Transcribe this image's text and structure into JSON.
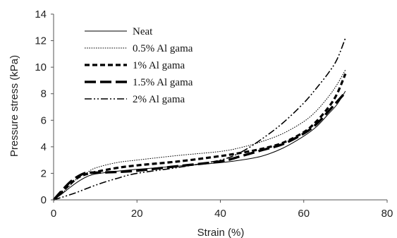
{
  "chart_data": {
    "type": "line",
    "xlabel": "Strain (%)",
    "ylabel": "Pressure stress (kPa)",
    "xlim": [
      0,
      80
    ],
    "ylim": [
      0,
      14
    ],
    "x_ticks": [
      "0",
      "20",
      "40",
      "60",
      "80"
    ],
    "y_ticks": [
      "0",
      "2",
      "4",
      "6",
      "8",
      "10",
      "12",
      "14"
    ],
    "grid": false,
    "legend_position": "upper-left",
    "series": [
      {
        "name": "Neat",
        "style": "solid",
        "x": [
          0,
          2,
          4,
          6,
          8,
          10,
          15,
          20,
          30,
          40,
          45,
          50,
          55,
          60,
          63,
          66,
          68,
          70
        ],
        "y": [
          0,
          0.45,
          0.95,
          1.4,
          1.75,
          1.95,
          2.15,
          2.3,
          2.55,
          2.8,
          3.0,
          3.3,
          3.9,
          4.8,
          5.5,
          6.5,
          7.2,
          8.2
        ]
      },
      {
        "name": "0.5% Al gama",
        "style": "dotted",
        "x": [
          0,
          2,
          4,
          6,
          8,
          10,
          15,
          20,
          30,
          40,
          45,
          50,
          55,
          60,
          63,
          66,
          68,
          70
        ],
        "y": [
          0,
          0.5,
          1.1,
          1.7,
          2.05,
          2.4,
          2.8,
          3.0,
          3.35,
          3.65,
          3.95,
          4.4,
          5.0,
          5.9,
          6.7,
          7.8,
          8.7,
          9.8
        ]
      },
      {
        "name": "1% Al gama",
        "style": "dashed",
        "x": [
          0,
          2,
          4,
          6,
          8,
          10,
          15,
          20,
          30,
          40,
          45,
          50,
          55,
          60,
          63,
          66,
          68,
          70
        ],
        "y": [
          0,
          0.6,
          1.2,
          1.7,
          1.95,
          2.1,
          2.4,
          2.6,
          2.9,
          3.3,
          3.55,
          3.85,
          4.3,
          5.1,
          5.9,
          7.0,
          8.0,
          9.5
        ]
      },
      {
        "name": "1.5% Al gama",
        "style": "long-dash",
        "x": [
          0,
          2,
          4,
          6,
          8,
          10,
          15,
          20,
          30,
          40,
          45,
          50,
          55,
          60,
          63,
          66,
          68,
          70
        ],
        "y": [
          0,
          0.7,
          1.35,
          1.8,
          2.05,
          2.05,
          2.1,
          2.2,
          2.55,
          2.9,
          3.3,
          3.75,
          4.2,
          5.0,
          5.7,
          6.7,
          7.4,
          8.1
        ]
      },
      {
        "name": "2% Al gama",
        "style": "dash-dot-dot",
        "x": [
          0,
          5,
          10,
          15,
          20,
          30,
          40,
          45,
          50,
          55,
          60,
          63,
          66,
          68,
          70
        ],
        "y": [
          0,
          0.5,
          1.1,
          1.6,
          2.0,
          2.45,
          3.0,
          3.6,
          4.6,
          5.8,
          7.3,
          8.4,
          9.6,
          10.6,
          12.2
        ]
      }
    ]
  }
}
